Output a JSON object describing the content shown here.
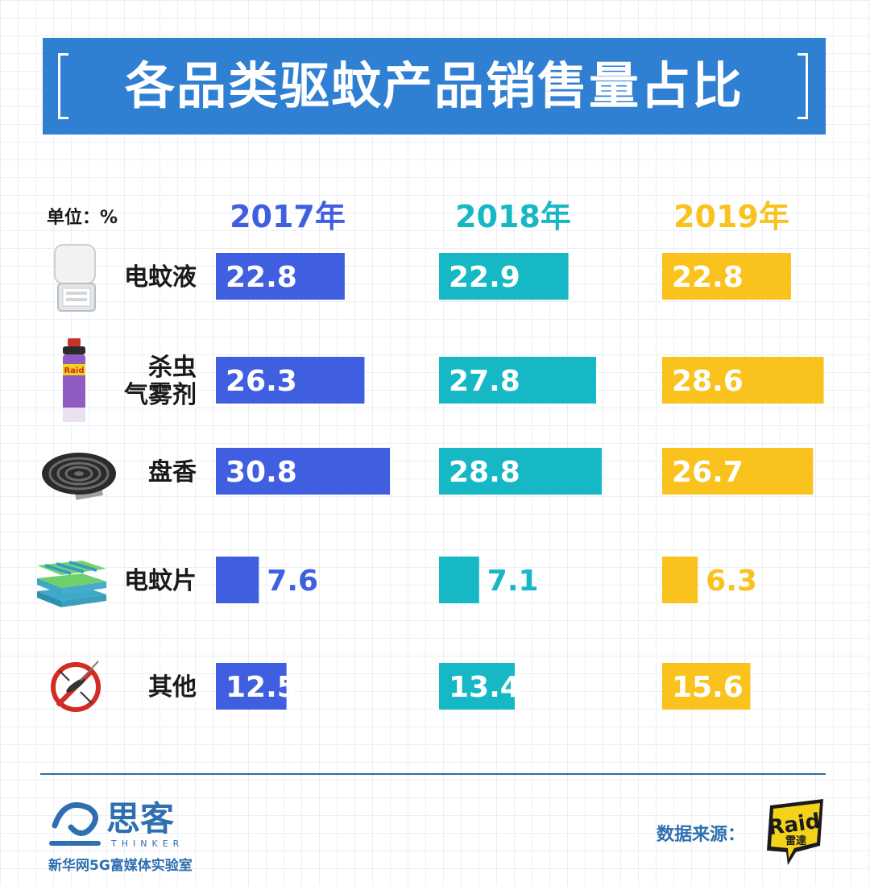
{
  "title": "各品类驱蚊产品销售量占比",
  "unit_label": "单位：%",
  "years": [
    {
      "label": "2017年",
      "color": "#3f5fe0"
    },
    {
      "label": "2018年",
      "color": "#15b8c4"
    },
    {
      "label": "2019年",
      "color": "#f9c21d"
    }
  ],
  "chart_data": {
    "type": "bar",
    "categories": [
      "电蚊液",
      "杀虫\n气雾剂",
      "盘香",
      "电蚊片",
      "其他"
    ],
    "series": [
      {
        "name": "2017年",
        "values": [
          22.8,
          26.3,
          30.8,
          7.6,
          12.5
        ]
      },
      {
        "name": "2018年",
        "values": [
          22.9,
          27.8,
          28.8,
          7.1,
          13.4
        ]
      },
      {
        "name": "2019年",
        "values": [
          22.8,
          28.6,
          26.7,
          6.3,
          15.6
        ]
      }
    ],
    "title": "各品类驱蚊产品销售量占比",
    "ylabel": "",
    "xlabel": "",
    "ylim": [
      0,
      30.8
    ]
  },
  "category_icons": [
    "plug-in-vaporizer-icon",
    "raid-aerosol-can-icon",
    "mosquito-coil-icon",
    "mosquito-mat-stack-icon",
    "no-mosquito-icon"
  ],
  "footer": {
    "logo_text": "思客",
    "logo_subtext": "THINKER",
    "caption": "新华网5G富媒体实验室",
    "source_label": "数据来源：",
    "source_logo_text": "Raid",
    "source_logo_subtext": "雷達"
  }
}
